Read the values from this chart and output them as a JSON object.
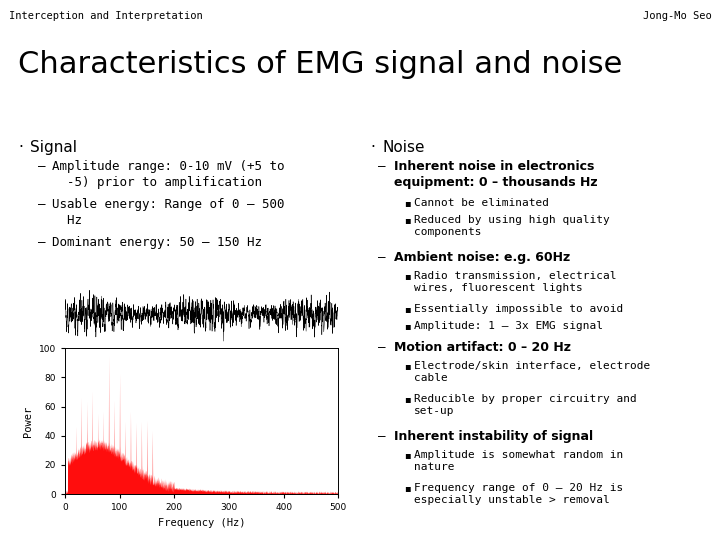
{
  "header_left": "Interception and Interpretation",
  "header_right": "Jong-Mo Seo",
  "header_bg": "#ccffcc",
  "title": "Characteristics of EMG signal and noise",
  "bg_color": "#ffffff",
  "left_bullet": "Signal",
  "left_sub_items": [
    "Amplitude range: 0-10 mV (+5 to\n  -5) prior to amplification",
    "Usable energy: Range of 0 – 500\n  Hz",
    "Dominant energy: 50 – 150 Hz"
  ],
  "right_bullet": "Noise",
  "right_items": [
    {
      "text": "Inherent noise in electronics\nequipment: 0 – thousands Hz",
      "sub": [
        "Cannot be eliminated",
        "Reduced by using high quality\ncomponents"
      ]
    },
    {
      "text": "Ambient noise: e.g. 60Hz",
      "sub": [
        "Radio transmission, electrical\nwires, fluorescent lights",
        "Essentially impossible to avoid",
        "Amplitude: 1 – 3x EMG signal"
      ]
    },
    {
      "text": "Motion artifact: 0 – 20 Hz",
      "sub": [
        "Electrode/skin interface, electrode\ncable",
        "Reducible by proper circuitry and\nset-up"
      ]
    },
    {
      "text": "Inherent instability of signal",
      "sub": [
        "Amplitude is somewhat random in\nnature",
        "Frequency range of 0 – 20 Hz is\nespecially unstable > removal"
      ]
    }
  ],
  "signal_plot_ylabel": "Power",
  "signal_plot_xlabel": "Frequency (Hz)",
  "signal_plot_yticks": [
    0,
    20,
    40,
    60,
    80,
    100
  ],
  "signal_plot_xticks": [
    0,
    100,
    200,
    300,
    400,
    500
  ]
}
